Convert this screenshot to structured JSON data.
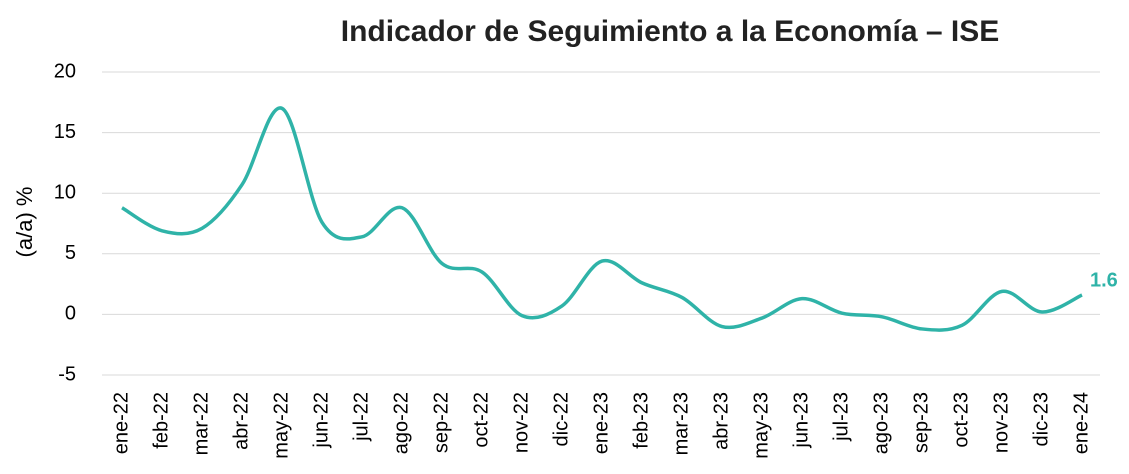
{
  "chart_data": {
    "type": "line",
    "title": "Indicador de Seguimiento a la Economía – ISE",
    "y_label": "(a/a) %",
    "categories": [
      "ene-22",
      "feb-22",
      "mar-22",
      "abr-22",
      "may-22",
      "jun-22",
      "jul-22",
      "ago-22",
      "sep-22",
      "oct-22",
      "nov-22",
      "dic-22",
      "ene-23",
      "feb-23",
      "mar-23",
      "abr-23",
      "may-23",
      "jun-23",
      "jul-23",
      "ago-23",
      "sep-23",
      "oct-23",
      "nov-23",
      "dic-23",
      "ene-24"
    ],
    "values": [
      8.8,
      6.9,
      7.1,
      10.7,
      17.0,
      7.6,
      6.4,
      8.8,
      4.2,
      3.5,
      -0.1,
      0.7,
      4.4,
      2.6,
      1.4,
      -1.0,
      -0.3,
      1.3,
      0.1,
      -0.2,
      -1.2,
      -0.9,
      1.9,
      0.2,
      1.6
    ],
    "color": "#2fb3a8",
    "ylim": [
      -5,
      20
    ],
    "yticks": [
      -5,
      0,
      5,
      10,
      15,
      20
    ],
    "grid": true
  }
}
